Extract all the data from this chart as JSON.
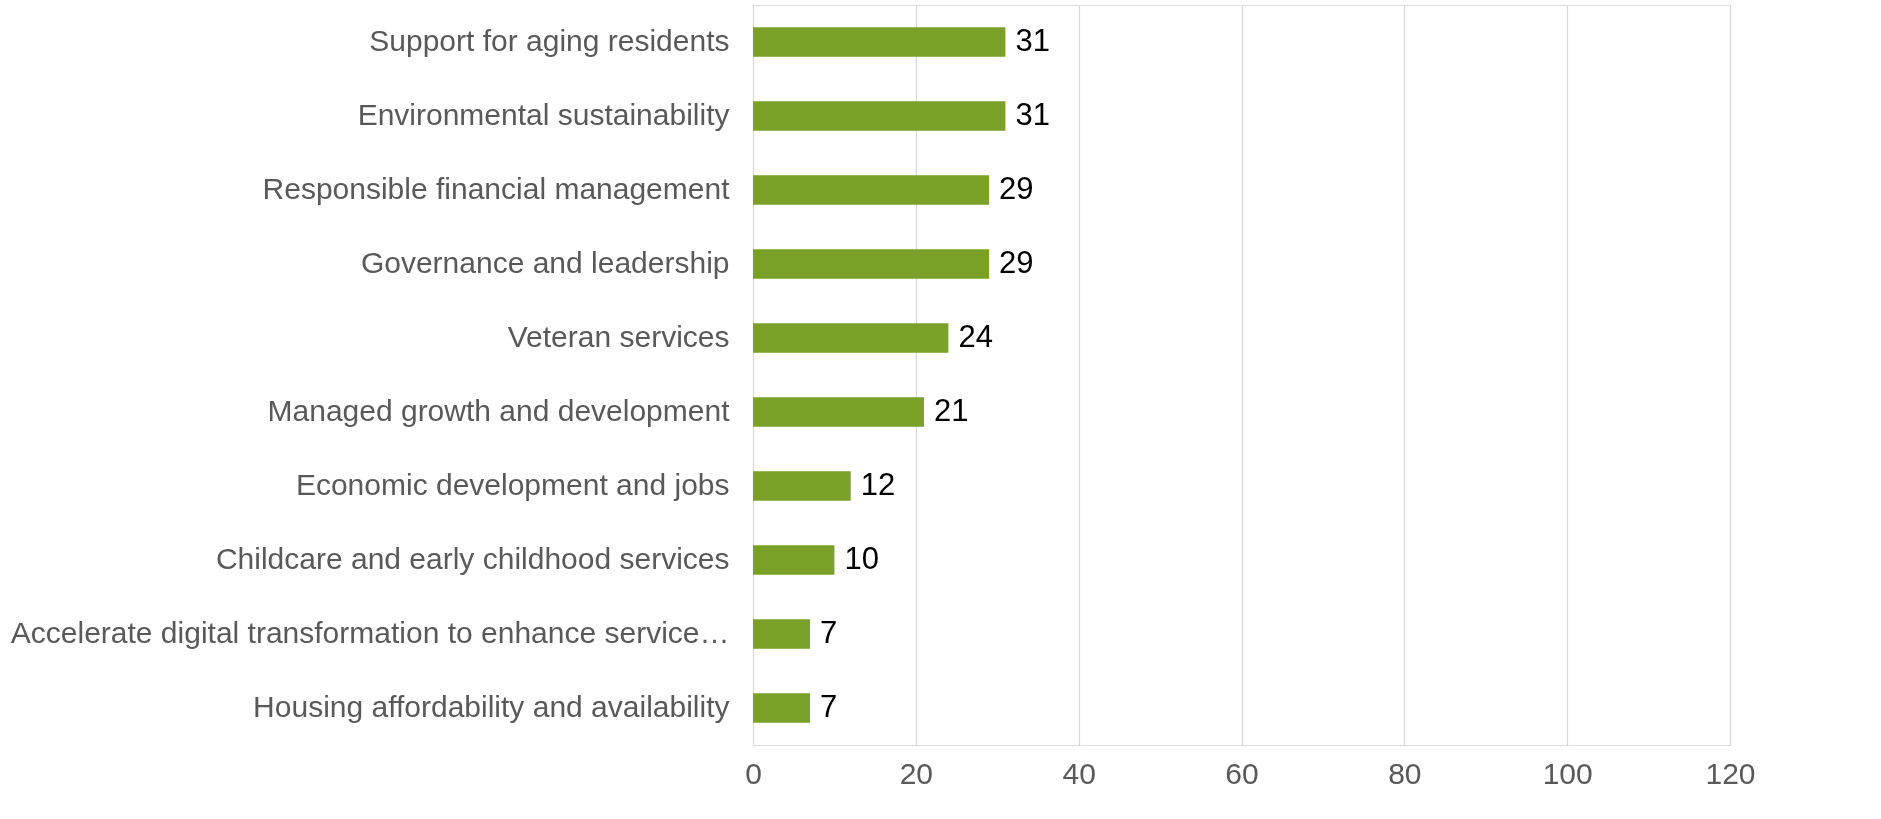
{
  "chart_data": {
    "type": "bar",
    "orientation": "horizontal",
    "categories": [
      "Support for aging residents",
      "Environmental sustainability",
      "Responsible financial management",
      "Governance and leadership",
      "Veteran services",
      "Managed growth and development",
      "Economic development and jobs",
      "Childcare and early childhood services",
      "Accelerate digital transformation to enhance service…",
      "Housing affordability and availability"
    ],
    "values": [
      31,
      31,
      29,
      29,
      24,
      21,
      12,
      10,
      7,
      7
    ],
    "color": "#7aa02a",
    "xlim": [
      0,
      120
    ],
    "xticks": [
      0,
      20,
      40,
      60,
      80,
      100,
      120
    ],
    "grid": "x",
    "data_labels": true
  }
}
